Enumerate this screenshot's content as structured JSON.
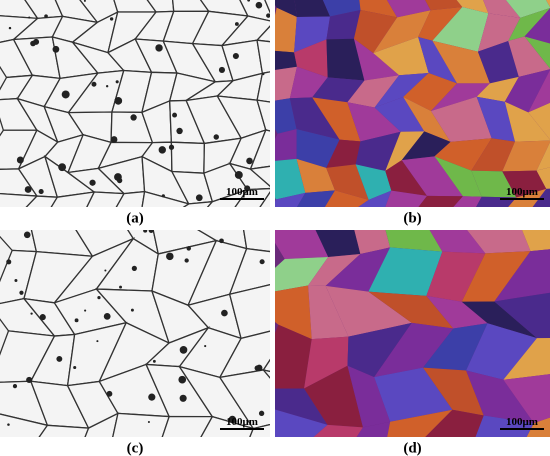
{
  "panels": [
    {
      "label": "(a)",
      "scale_bar": "100μm"
    },
    {
      "label": "(b)",
      "scale_bar": "100μm"
    },
    {
      "label": "(c)",
      "scale_bar": "100μm"
    },
    {
      "label": "(d)",
      "scale_bar": "100μm"
    }
  ]
}
